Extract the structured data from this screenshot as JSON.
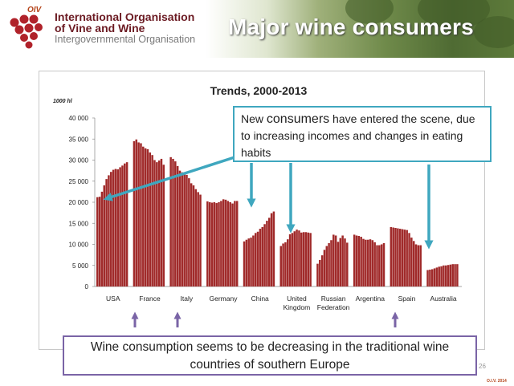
{
  "header": {
    "org_line1": "International Organisation",
    "org_line2": "of Vine and Wine",
    "org_line3": "Intergovernmental Organisation",
    "logo_text": "OIV",
    "slide_title": "Major wine consumers"
  },
  "callout": {
    "text_pre": "New ",
    "text_big": "consumers",
    "text_post": " have entered the scene, due to increasing incomes and changes in eating habits"
  },
  "footer_box": {
    "text": "Wine consumption seems to be decreasing in the traditional wine countries of southern Europe"
  },
  "page_number": "26",
  "copyright": "O.I.V. 2014",
  "colors": {
    "bar": "#a02a2a",
    "callout_border": "#3fa7bf",
    "teal_arrow": "#3fa7bf",
    "purple_arrow": "#7a64a6",
    "title_brand": "#6b1a22"
  },
  "chart_data": {
    "type": "bar",
    "title": "Trends, 2000-2013",
    "unit_label": "1000 hl",
    "x_start_year": 2000,
    "ylim": [
      0,
      40000
    ],
    "yticks": [
      0,
      5000,
      10000,
      15000,
      20000,
      25000,
      30000,
      35000,
      40000
    ],
    "ytick_labels": [
      "0",
      "5 000",
      "10 000",
      "15 000",
      "20 000",
      "25 000",
      "30 000",
      "35 000",
      "40 000"
    ],
    "series": [
      {
        "name": "USA",
        "label": [
          "USA"
        ],
        "values": [
          21200,
          21300,
          22500,
          24000,
          25500,
          26400,
          27200,
          27700,
          27900,
          27800,
          28300,
          28700,
          29200,
          29500
        ]
      },
      {
        "name": "France",
        "label": [
          "France"
        ],
        "values": [
          34500,
          34900,
          34200,
          34000,
          33200,
          32800,
          32600,
          31800,
          31200,
          30000,
          29500,
          29900,
          30300,
          28900
        ]
      },
      {
        "name": "Italy",
        "label": [
          "Italy"
        ],
        "values": [
          30700,
          30300,
          29700,
          28600,
          27500,
          27100,
          27000,
          26500,
          25700,
          24500,
          24000,
          23100,
          22400,
          21800
        ]
      },
      {
        "name": "Germany",
        "label": [
          "Germany"
        ],
        "values": [
          20200,
          20000,
          19900,
          20000,
          19800,
          20000,
          20300,
          20700,
          20600,
          20300,
          20000,
          19700,
          20300,
          20300
        ]
      },
      {
        "name": "China",
        "label": [
          "China"
        ],
        "values": [
          10700,
          11100,
          11400,
          11600,
          12100,
          12700,
          13000,
          13700,
          14100,
          14800,
          15600,
          16300,
          17400,
          17800
        ]
      },
      {
        "name": "United Kingdom",
        "label": [
          "United",
          "Kingdom"
        ],
        "values": [
          9600,
          10200,
          10500,
          11200,
          12400,
          12700,
          13100,
          13500,
          13300,
          12800,
          12900,
          12900,
          12800,
          12700
        ]
      },
      {
        "name": "Russian Federation",
        "label": [
          "Russian",
          "Federation"
        ],
        "values": [
          5400,
          6300,
          7400,
          8700,
          9600,
          10300,
          11000,
          12300,
          12100,
          10600,
          11500,
          12100,
          11400,
          10400
        ]
      },
      {
        "name": "Argentina",
        "label": [
          "Argentina"
        ],
        "values": [
          12300,
          12100,
          12000,
          11800,
          11300,
          11100,
          11100,
          11200,
          11000,
          10500,
          9800,
          9800,
          10000,
          10300
        ]
      },
      {
        "name": "Spain",
        "label": [
          "Spain"
        ],
        "values": [
          14100,
          14000,
          13900,
          13800,
          13700,
          13600,
          13500,
          13400,
          12700,
          11600,
          10800,
          10000,
          9800,
          9800
        ]
      },
      {
        "name": "Australia",
        "label": [
          "Australia"
        ],
        "values": [
          3900,
          4000,
          4100,
          4300,
          4500,
          4700,
          4800,
          5000,
          5000,
          5100,
          5200,
          5300,
          5300,
          5300
        ]
      }
    ]
  }
}
